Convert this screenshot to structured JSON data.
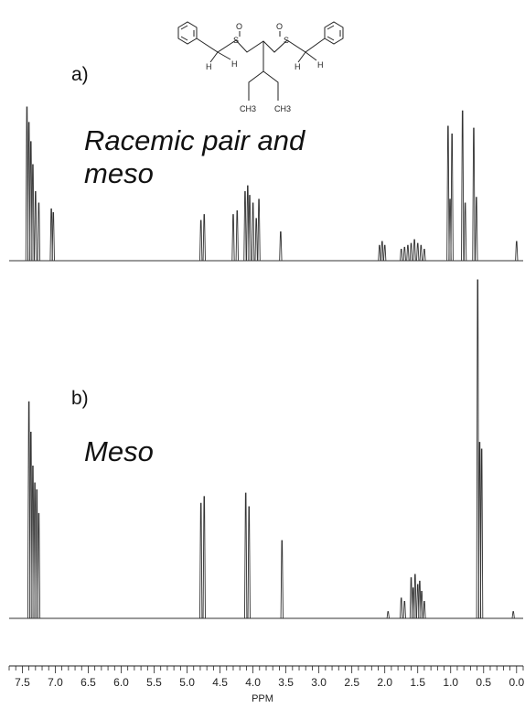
{
  "panels": [
    {
      "label": "a)",
      "caption_line1": "Racemic pair and",
      "caption_line2": "meso"
    },
    {
      "label": "b)",
      "caption_line1": "Meso",
      "caption_line2": ""
    }
  ],
  "structure": {
    "atom_labels": [
      "O",
      "O",
      "S",
      "S",
      "H",
      "H",
      "H",
      "H",
      "CH3",
      "CH3"
    ]
  },
  "chart_data": {
    "type": "line",
    "title": "",
    "xlabel": "PPM",
    "ylabel": "",
    "xlim": [
      7.7,
      -0.1
    ],
    "x_reversed": true,
    "grid": false,
    "x_ticks": [
      "7.5",
      "7.0",
      "6.5",
      "6.0",
      "5.5",
      "5.0",
      "4.5",
      "4.0",
      "3.5",
      "3.0",
      "2.5",
      "2.0",
      "1.5",
      "1.0",
      "0.5",
      "0.0"
    ],
    "series": [
      {
        "panel": "a",
        "peaks": [
          {
            "ppm": 7.43,
            "intensity": 0.8
          },
          {
            "ppm": 7.4,
            "intensity": 0.72
          },
          {
            "ppm": 7.37,
            "intensity": 0.62
          },
          {
            "ppm": 7.34,
            "intensity": 0.5
          },
          {
            "ppm": 7.3,
            "intensity": 0.36
          },
          {
            "ppm": 7.25,
            "intensity": 0.3
          },
          {
            "ppm": 7.06,
            "intensity": 0.27
          },
          {
            "ppm": 7.03,
            "intensity": 0.25
          },
          {
            "ppm": 4.79,
            "intensity": 0.21
          },
          {
            "ppm": 4.74,
            "intensity": 0.24
          },
          {
            "ppm": 4.3,
            "intensity": 0.24
          },
          {
            "ppm": 4.24,
            "intensity": 0.26
          },
          {
            "ppm": 4.12,
            "intensity": 0.36
          },
          {
            "ppm": 4.08,
            "intensity": 0.39
          },
          {
            "ppm": 4.05,
            "intensity": 0.34
          },
          {
            "ppm": 4.0,
            "intensity": 0.3
          },
          {
            "ppm": 3.95,
            "intensity": 0.22
          },
          {
            "ppm": 3.91,
            "intensity": 0.32
          },
          {
            "ppm": 3.58,
            "intensity": 0.15
          },
          {
            "ppm": 2.08,
            "intensity": 0.08
          },
          {
            "ppm": 2.04,
            "intensity": 0.1
          },
          {
            "ppm": 2.0,
            "intensity": 0.08
          },
          {
            "ppm": 1.75,
            "intensity": 0.06
          },
          {
            "ppm": 1.7,
            "intensity": 0.07
          },
          {
            "ppm": 1.65,
            "intensity": 0.08
          },
          {
            "ppm": 1.6,
            "intensity": 0.09
          },
          {
            "ppm": 1.55,
            "intensity": 0.11
          },
          {
            "ppm": 1.5,
            "intensity": 0.09
          },
          {
            "ppm": 1.45,
            "intensity": 0.08
          },
          {
            "ppm": 1.4,
            "intensity": 0.06
          },
          {
            "ppm": 1.04,
            "intensity": 0.7
          },
          {
            "ppm": 1.01,
            "intensity": 0.32
          },
          {
            "ppm": 0.98,
            "intensity": 0.66
          },
          {
            "ppm": 0.82,
            "intensity": 0.78
          },
          {
            "ppm": 0.78,
            "intensity": 0.3
          },
          {
            "ppm": 0.65,
            "intensity": 0.69
          },
          {
            "ppm": 0.61,
            "intensity": 0.33
          },
          {
            "ppm": 0.0,
            "intensity": 0.1
          }
        ]
      },
      {
        "panel": "b",
        "peaks": [
          {
            "ppm": 7.4,
            "intensity": 0.64
          },
          {
            "ppm": 7.37,
            "intensity": 0.55
          },
          {
            "ppm": 7.34,
            "intensity": 0.45
          },
          {
            "ppm": 7.31,
            "intensity": 0.4
          },
          {
            "ppm": 7.28,
            "intensity": 0.38
          },
          {
            "ppm": 7.25,
            "intensity": 0.31
          },
          {
            "ppm": 4.79,
            "intensity": 0.34
          },
          {
            "ppm": 4.74,
            "intensity": 0.36
          },
          {
            "ppm": 4.11,
            "intensity": 0.37
          },
          {
            "ppm": 4.06,
            "intensity": 0.33
          },
          {
            "ppm": 3.56,
            "intensity": 0.23
          },
          {
            "ppm": 1.95,
            "intensity": 0.02
          },
          {
            "ppm": 1.75,
            "intensity": 0.06
          },
          {
            "ppm": 1.7,
            "intensity": 0.05
          },
          {
            "ppm": 1.6,
            "intensity": 0.12
          },
          {
            "ppm": 1.57,
            "intensity": 0.09
          },
          {
            "ppm": 1.54,
            "intensity": 0.13
          },
          {
            "ppm": 1.5,
            "intensity": 0.1
          },
          {
            "ppm": 1.47,
            "intensity": 0.11
          },
          {
            "ppm": 1.44,
            "intensity": 0.08
          },
          {
            "ppm": 1.4,
            "intensity": 0.05
          },
          {
            "ppm": 0.59,
            "intensity": 1.0
          },
          {
            "ppm": 0.56,
            "intensity": 0.52
          },
          {
            "ppm": 0.53,
            "intensity": 0.5
          },
          {
            "ppm": 0.05,
            "intensity": 0.02
          }
        ]
      }
    ]
  }
}
